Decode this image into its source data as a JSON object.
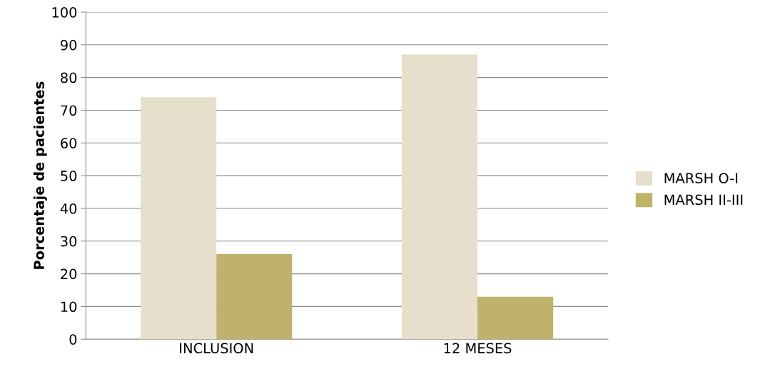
{
  "chart_data": {
    "type": "bar",
    "ylabel": "Porcentaje de pacientes",
    "categories": [
      "INCLUSION",
      "12 MESES"
    ],
    "series": [
      {
        "name": "MARSH O-I",
        "color": "#e5dfcb",
        "values": [
          74,
          87
        ]
      },
      {
        "name": "MARSH II-III",
        "color": "#bfb36b",
        "values": [
          26,
          13
        ]
      }
    ],
    "ylim": [
      0,
      100
    ],
    "yticks": [
      0,
      10,
      20,
      30,
      40,
      50,
      60,
      70,
      80,
      90,
      100
    ],
    "grid": "y",
    "legend": "right"
  }
}
